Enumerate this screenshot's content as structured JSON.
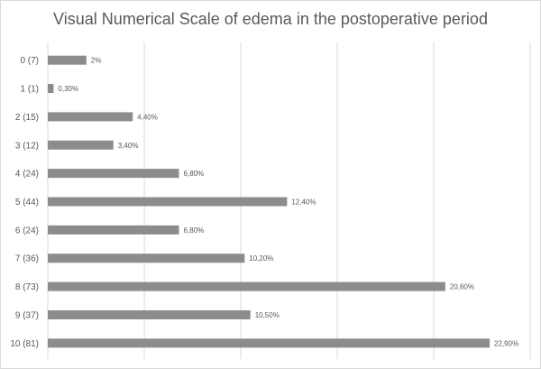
{
  "chart_data": {
    "type": "bar",
    "orientation": "horizontal",
    "title": "Visual Numerical Scale of edema in the postoperative period",
    "categories": [
      "0 (7)",
      "1 (1)",
      "2 (15)",
      "3 (12)",
      "4 (24)",
      "5 (44)",
      "6 (24)",
      "7 (36)",
      "8 (73)",
      "9 (37)",
      "10 (81)"
    ],
    "values": [
      2,
      0.3,
      4.4,
      3.4,
      6.8,
      12.4,
      6.8,
      10.2,
      20.6,
      10.5,
      22.9
    ],
    "data_labels": [
      "2%",
      "0,30%",
      "4,40%",
      "3,40%",
      "6,80%",
      "12,40%",
      "6,80%",
      "10,20%",
      "20,60%",
      "10,50%",
      "22,90%"
    ],
    "xlim": [
      0,
      25
    ],
    "grid": true,
    "legend": "none",
    "bar_color": "#8c8c8c",
    "grid_color": "#d9d9d9",
    "text_color": "#595959"
  }
}
